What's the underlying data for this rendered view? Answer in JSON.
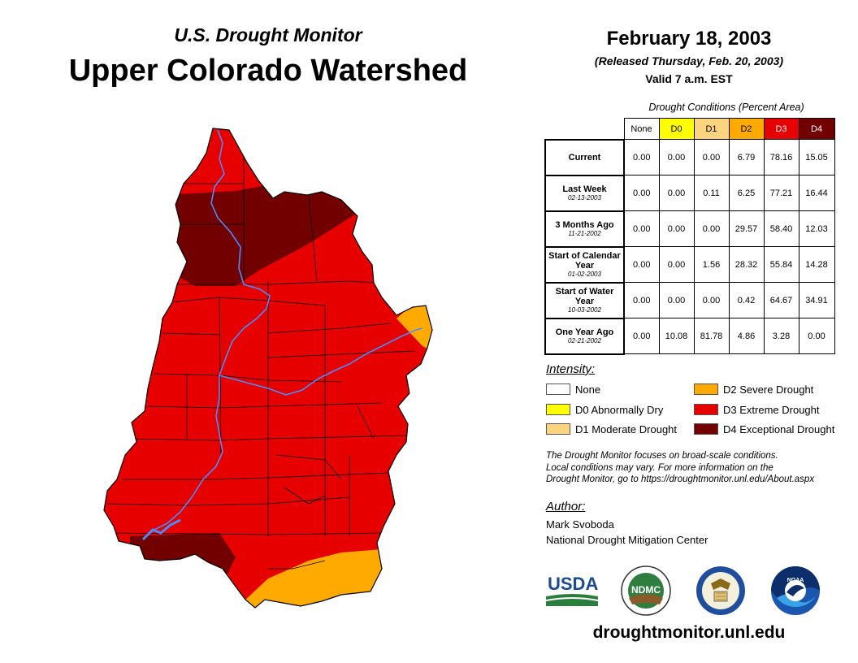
{
  "header": {
    "subtitle": "U.S. Drought Monitor",
    "title": "Upper Colorado Watershed",
    "date": "February 18, 2003",
    "released": "(Released Thursday, Feb. 20, 2003)",
    "valid": "Valid 7 a.m. EST"
  },
  "table": {
    "caption": "Drought Conditions (Percent Area)",
    "columns": [
      "None",
      "D0",
      "D1",
      "D2",
      "D3",
      "D4"
    ],
    "rows": [
      {
        "label": "Current",
        "date": "",
        "values": [
          "0.00",
          "0.00",
          "0.00",
          "6.79",
          "78.16",
          "15.05"
        ]
      },
      {
        "label": "Last Week",
        "date": "02-13-2003",
        "values": [
          "0.00",
          "0.00",
          "0.11",
          "6.25",
          "77.21",
          "16.44"
        ]
      },
      {
        "label": "3 Months Ago",
        "date": "11-21-2002",
        "values": [
          "0.00",
          "0.00",
          "0.00",
          "29.57",
          "58.40",
          "12.03"
        ]
      },
      {
        "label": "Start of Calendar Year",
        "date": "01-02-2003",
        "values": [
          "0.00",
          "0.00",
          "1.56",
          "28.32",
          "55.84",
          "14.28"
        ]
      },
      {
        "label": "Start of Water Year",
        "date": "10-03-2002",
        "values": [
          "0.00",
          "0.00",
          "0.00",
          "0.42",
          "64.67",
          "34.91"
        ]
      },
      {
        "label": "One Year Ago",
        "date": "02-21-2002",
        "values": [
          "0.00",
          "10.08",
          "81.78",
          "4.86",
          "3.28",
          "0.00"
        ]
      }
    ]
  },
  "legend": {
    "heading": "Intensity:",
    "items": [
      {
        "label": "None",
        "color": "#ffffff"
      },
      {
        "label": "D0 Abnormally Dry",
        "color": "#ffff00"
      },
      {
        "label": "D1 Moderate Drought",
        "color": "#fcd37f"
      },
      {
        "label": "D2 Severe Drought",
        "color": "#ffaa00"
      },
      {
        "label": "D3 Extreme Drought",
        "color": "#e60000"
      },
      {
        "label": "D4 Exceptional Drought",
        "color": "#730000"
      }
    ]
  },
  "note": {
    "line1": "The Drought Monitor focuses on broad-scale conditions.",
    "line2": "Local conditions may vary. For more information on the",
    "line3": "Drought Monitor, go to https://droughtmonitor.unl.edu/About.aspx"
  },
  "author": {
    "heading": "Author:",
    "name": "Mark Svoboda",
    "org": "National Drought Mitigation Center"
  },
  "logos": {
    "usda": "USDA",
    "ndmc": "NDMC",
    "noaa": "NOAA"
  },
  "footer": {
    "site": "droughtmonitor.unl.edu"
  },
  "colors": {
    "d2": "#ffaa00",
    "d3": "#e60000",
    "d4": "#730000",
    "river": "#4a8cff"
  }
}
